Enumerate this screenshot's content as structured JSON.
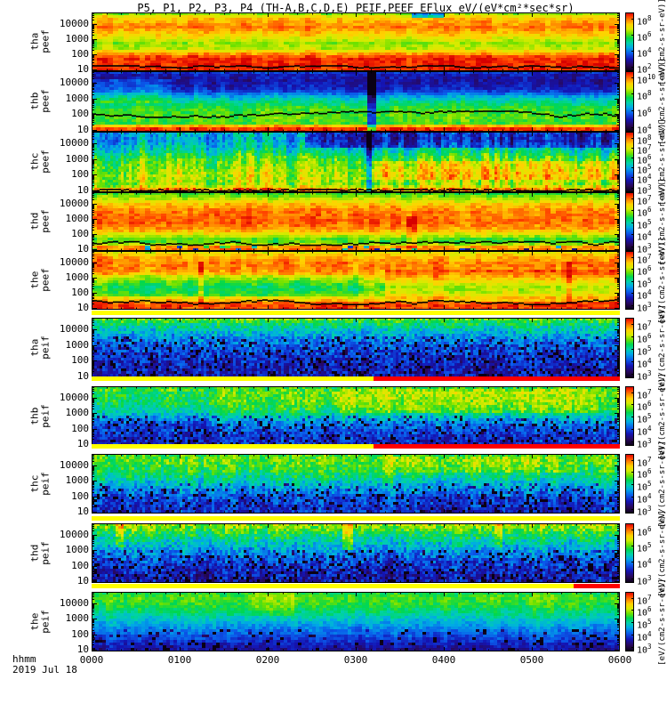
{
  "title": "P5, P1, P2, P3, P4 (TH-A,B,C,D,E)  PEIF,PEEF EFlux eV/(eV*cm²*sec*sr)",
  "footer": {
    "hhmm": "hhmm",
    "date": "2019 Jul 18"
  },
  "x_axis": {
    "ticks": [
      "0000",
      "0100",
      "0200",
      "0300",
      "0400",
      "0500",
      "0600"
    ]
  },
  "unit_label": "[eV/(cm2-s-sr-eV)]",
  "chart_data": {
    "type": "heatmap",
    "subtype": "energy-time spectrogram stack",
    "title": "P5, P1, P2, P3, P4 (TH-A,B,C,D,E)  PEIF,PEEF EFlux eV/(eV*cm²*sec*sr)",
    "x_label": "hhmm 2019 Jul 18",
    "x_range": [
      "0000",
      "0600"
    ],
    "y_scale": "log",
    "z_units": "[eV/(cm2-s-sr-eV)]",
    "colormap": "rainbow",
    "panels": [
      {
        "label": [
          "tha",
          "peef"
        ],
        "y_ticks": [
          "10000",
          "1000",
          "100",
          "10"
        ],
        "cb_exponents": [
          8,
          6,
          4,
          2
        ],
        "description": "electron eflux: intense orange-red band at high energy, yellow mid band, saturated red below 100 eV with black line near 20 eV",
        "render": {
          "cw": 6,
          "noise": 0.045,
          "cn": 0.05,
          "profile": [
            [
              0,
              0.6
            ],
            [
              0.05,
              0.74
            ],
            [
              0.12,
              0.82
            ],
            [
              0.25,
              0.88
            ],
            [
              0.4,
              0.78
            ],
            [
              0.52,
              0.66
            ],
            [
              0.62,
              0.7
            ],
            [
              0.72,
              0.88
            ],
            [
              0.78,
              0.96
            ],
            [
              0.97,
              0.96
            ],
            [
              1,
              0.92
            ]
          ],
          "trace": {
            "f": 0.915,
            "amp": 0.018
          },
          "features": [
            {
              "x0": 0.6,
              "x1": 0.66,
              "f0": 0,
              "f1": 0.1,
              "dv": -0.3
            }
          ]
        }
      },
      {
        "label": [
          "thb",
          "peef"
        ],
        "y_ticks": [
          "10000",
          "1000",
          "100",
          "10"
        ],
        "cb_exponents": [
          10,
          8,
          6,
          4
        ],
        "description": "dark blue high energies, green-yellow band 20-300 eV with black contour, red strip at 10 eV, dark dropout column near 0320",
        "render": {
          "cw": 5,
          "noise": 0.05,
          "cn": 0.05,
          "profile": [
            [
              0,
              0.28
            ],
            [
              0.06,
              0.2
            ],
            [
              0.18,
              0.17
            ],
            [
              0.32,
              0.24
            ],
            [
              0.42,
              0.4
            ],
            [
              0.52,
              0.52
            ],
            [
              0.64,
              0.6
            ],
            [
              0.76,
              0.62
            ],
            [
              0.86,
              0.6
            ],
            [
              0.9,
              0.8
            ],
            [
              0.93,
              0.95
            ],
            [
              1,
              0.95
            ]
          ],
          "trace": {
            "f": 0.7,
            "amp": 0.05
          },
          "stripes": [
            {
              "x": 0.525,
              "w": 0.012,
              "dv": -0.3,
              "f0": 0,
              "f1": 1
            }
          ],
          "features": [
            {
              "x0": 0,
              "x1": 0.15,
              "f0": 0.15,
              "f1": 0.55,
              "dv": 0.1
            }
          ]
        }
      },
      {
        "label": [
          "thc",
          "peef"
        ],
        "y_ticks": [
          "10000",
          "1000",
          "100",
          "10"
        ],
        "cb_exponents": [
          8,
          7,
          6,
          5,
          4,
          3
        ],
        "description": "strong vertical striping, dark-blue striped top right, yellow-orange band 100-600 eV on right half, thin red bottom edge",
        "render": {
          "cw": 3,
          "noise": 0.07,
          "cn": 0.16,
          "profile": [
            [
              0,
              0.42
            ],
            [
              0.12,
              0.38
            ],
            [
              0.28,
              0.46
            ],
            [
              0.45,
              0.6
            ],
            [
              0.6,
              0.66
            ],
            [
              0.75,
              0.7
            ],
            [
              0.88,
              0.66
            ],
            [
              0.95,
              0.85
            ],
            [
              1,
              0.82
            ]
          ],
          "trace": {
            "f": 0.955,
            "amp": 0.012
          },
          "stripes": [
            {
              "x": 0.525,
              "w": 0.01,
              "dv": -0.3,
              "f0": 0,
              "f1": 1
            }
          ],
          "features": [
            {
              "x0": 0.4,
              "x1": 1,
              "f0": 0,
              "f1": 0.28,
              "dv": -0.18
            },
            {
              "x0": 0.52,
              "x1": 1,
              "f0": 0.5,
              "f1": 0.8,
              "dv": 0.1
            }
          ]
        }
      },
      {
        "label": [
          "thd",
          "peef"
        ],
        "y_ticks": [
          "10000",
          "1000",
          "100",
          "10"
        ],
        "cb_exponents": [
          7,
          6,
          5,
          4,
          3
        ],
        "description": "broad orange-red band across mid energies, yellow top rows, dark speckled bottom with black trace, red streak near 0440",
        "render": {
          "cw": 6,
          "noise": 0.05,
          "cn": 0.06,
          "profile": [
            [
              0,
              0.58
            ],
            [
              0.08,
              0.66
            ],
            [
              0.2,
              0.8
            ],
            [
              0.32,
              0.88
            ],
            [
              0.52,
              0.9
            ],
            [
              0.64,
              0.84
            ],
            [
              0.74,
              0.7
            ],
            [
              0.82,
              0.58
            ],
            [
              0.88,
              0.66
            ],
            [
              0.94,
              0.88
            ],
            [
              1,
              0.86
            ]
          ],
          "trace": {
            "f": 0.86,
            "amp": 0.03
          },
          "speckle": {
            "f0": 0.9,
            "p": 0.15,
            "d": 0.5
          },
          "stripes": [
            {
              "x": 0.6,
              "w": 0.02,
              "dv": 0.12,
              "f0": 0.4,
              "f1": 0.95
            }
          ]
        }
      },
      {
        "label": [
          "the",
          "peef"
        ],
        "y_ticks": [
          "10000",
          "1000",
          "100",
          "10"
        ],
        "cb_exponents": [
          7,
          6,
          5,
          4,
          3
        ],
        "description": "red-orange dominated, yellow-green mid band on left half, saturated red bottom with undulating black trace",
        "render": {
          "cw": 6,
          "noise": 0.05,
          "cn": 0.06,
          "profile": [
            [
              0,
              0.72
            ],
            [
              0.08,
              0.82
            ],
            [
              0.22,
              0.9
            ],
            [
              0.36,
              0.86
            ],
            [
              0.5,
              0.72
            ],
            [
              0.62,
              0.62
            ],
            [
              0.74,
              0.68
            ],
            [
              0.84,
              0.82
            ],
            [
              0.9,
              0.95
            ],
            [
              1,
              0.94
            ]
          ],
          "trace": {
            "f": 0.86,
            "amp": 0.04
          },
          "features": [
            {
              "x0": 0,
              "x1": 0.5,
              "f0": 0.42,
              "f1": 0.78,
              "dv": -0.07
            },
            {
              "x0": 0.55,
              "x1": 1,
              "f0": 0.3,
              "f1": 0.8,
              "dv": 0.07
            }
          ],
          "stripes": [
            {
              "x": 0.205,
              "w": 0.012,
              "dv": 0.1,
              "f0": 0.2,
              "f1": 0.9
            },
            {
              "x": 0.9,
              "w": 0.01,
              "dv": 0.1,
              "f0": 0.2,
              "f1": 0.9
            }
          ]
        }
      },
      {
        "label": [
          "tha",
          "peif"
        ],
        "y_ticks": [
          "10000",
          "1000",
          "100",
          "10"
        ],
        "cb_exponents": [
          7,
          6,
          5,
          4,
          3
        ],
        "description": "ion eflux: thin yellow top edge, green fading to speckled dark blue at low energy",
        "render": {
          "cw": 3,
          "noise": 0.09,
          "cn": 0.05,
          "profile": [
            [
              0,
              0.66
            ],
            [
              0.05,
              0.58
            ],
            [
              0.14,
              0.5
            ],
            [
              0.28,
              0.4
            ],
            [
              0.45,
              0.31
            ],
            [
              0.62,
              0.25
            ],
            [
              0.82,
              0.21
            ],
            [
              1,
              0.19
            ]
          ],
          "speckle": {
            "f0": 0.3,
            "p": 0.16,
            "d": 0.3
          }
        }
      },
      {
        "label": [
          "thb",
          "peif"
        ],
        "y_ticks": [
          "10000",
          "1000",
          "100",
          "10"
        ],
        "cb_exponents": [
          7,
          6,
          5,
          4,
          3
        ],
        "description": "yellow-green upper half brightening after 0300, speckled blue lower half",
        "render": {
          "cw": 3,
          "noise": 0.08,
          "cn": 0.06,
          "profile": [
            [
              0,
              0.58
            ],
            [
              0.12,
              0.62
            ],
            [
              0.28,
              0.6
            ],
            [
              0.42,
              0.54
            ],
            [
              0.52,
              0.44
            ],
            [
              0.64,
              0.33
            ],
            [
              0.8,
              0.25
            ],
            [
              1,
              0.22
            ]
          ],
          "speckle": {
            "f0": 0.5,
            "p": 0.15,
            "d": 0.3
          },
          "features": [
            {
              "x0": 0.45,
              "x1": 0.95,
              "f0": 0.05,
              "f1": 0.45,
              "dv": 0.07
            },
            {
              "x0": 0,
              "x1": 0.22,
              "f0": 0.1,
              "f1": 0.7,
              "dv": -0.05
            }
          ]
        }
      },
      {
        "label": [
          "thc",
          "peif"
        ],
        "y_ticks": [
          "10000",
          "1000",
          "100",
          "10"
        ],
        "cb_exponents": [
          7,
          6,
          5,
          4,
          3
        ],
        "description": "green-yellow upper third with columnar variability, speckled blue below",
        "render": {
          "cw": 3,
          "noise": 0.08,
          "cn": 0.09,
          "profile": [
            [
              0,
              0.6
            ],
            [
              0.14,
              0.62
            ],
            [
              0.3,
              0.56
            ],
            [
              0.44,
              0.48
            ],
            [
              0.58,
              0.38
            ],
            [
              0.74,
              0.27
            ],
            [
              1,
              0.22
            ]
          ],
          "speckle": {
            "f0": 0.5,
            "p": 0.15,
            "d": 0.3
          },
          "features": [
            {
              "x0": 0.55,
              "x1": 0.92,
              "f0": 0.05,
              "f1": 0.3,
              "dv": 0.06
            }
          ]
        }
      },
      {
        "label": [
          "thd",
          "peif"
        ],
        "y_ticks": [
          "10000",
          "1000",
          "100",
          "10"
        ],
        "cb_exponents": [
          6,
          5,
          4,
          3
        ],
        "description": "yellow-orange top rows with orange streaks, green-cyan mid, speckled blue bottom",
        "render": {
          "cw": 3,
          "noise": 0.09,
          "cn": 0.07,
          "profile": [
            [
              0,
              0.7
            ],
            [
              0.07,
              0.65
            ],
            [
              0.17,
              0.56
            ],
            [
              0.32,
              0.46
            ],
            [
              0.48,
              0.36
            ],
            [
              0.64,
              0.27
            ],
            [
              0.84,
              0.21
            ],
            [
              1,
              0.19
            ]
          ],
          "speckle": {
            "f0": 0.45,
            "p": 0.15,
            "d": 0.3
          },
          "stripes": [
            {
              "x": 0.05,
              "w": 0.015,
              "dv": 0.14,
              "f0": 0,
              "f1": 0.4
            },
            {
              "x": 0.48,
              "w": 0.02,
              "dv": 0.14,
              "f0": 0,
              "f1": 0.45
            },
            {
              "x": 0.77,
              "w": 0.015,
              "dv": 0.12,
              "f0": 0,
              "f1": 0.4
            }
          ]
        }
      },
      {
        "label": [
          "the",
          "peif"
        ],
        "y_ticks": [
          "10000",
          "1000",
          "100",
          "10"
        ],
        "cb_exponents": [
          7,
          6,
          5,
          4,
          3
        ],
        "description": "smooth green-yellow upper band, cyan mid, darkening blue toward bottom edge",
        "render": {
          "cw": 4,
          "noise": 0.05,
          "cn": 0.05,
          "profile": [
            [
              0,
              0.56
            ],
            [
              0.1,
              0.62
            ],
            [
              0.24,
              0.58
            ],
            [
              0.38,
              0.5
            ],
            [
              0.52,
              0.41
            ],
            [
              0.68,
              0.32
            ],
            [
              0.84,
              0.24
            ],
            [
              1,
              0.15
            ]
          ],
          "speckle": {
            "f0": 0.62,
            "p": 0.1,
            "d": 0.25
          },
          "features": [
            {
              "x0": 0.3,
              "x1": 0.38,
              "f0": 0,
              "f1": 0.4,
              "dv": 0.07
            }
          ]
        }
      }
    ],
    "flag_bars": [
      {
        "segments": [
          {
            "color": "#ffff00",
            "x0": 0,
            "x1": 1
          }
        ]
      },
      {
        "segments": [
          {
            "color": "#ffff00",
            "x0": 0,
            "x1": 0.533
          },
          {
            "color": "#ff0000",
            "x0": 0.533,
            "x1": 1
          }
        ]
      },
      {
        "segments": [
          {
            "color": "#ffff00",
            "x0": 0,
            "x1": 0.533
          },
          {
            "color": "#ff0000",
            "x0": 0.533,
            "x1": 1
          }
        ]
      },
      {
        "segments": [
          {
            "color": "#ffff00",
            "x0": 0,
            "x1": 1
          }
        ]
      },
      {
        "segments": [
          {
            "color": "#ffff00",
            "x0": 0,
            "x1": 0.912
          },
          {
            "color": "#ff0000",
            "x0": 0.912,
            "x1": 1
          }
        ]
      }
    ],
    "colors": {
      "background": "#ffffff",
      "axis": "#000000",
      "flag_ok": "#ffff00",
      "flag_bad": "#ff0000"
    }
  }
}
